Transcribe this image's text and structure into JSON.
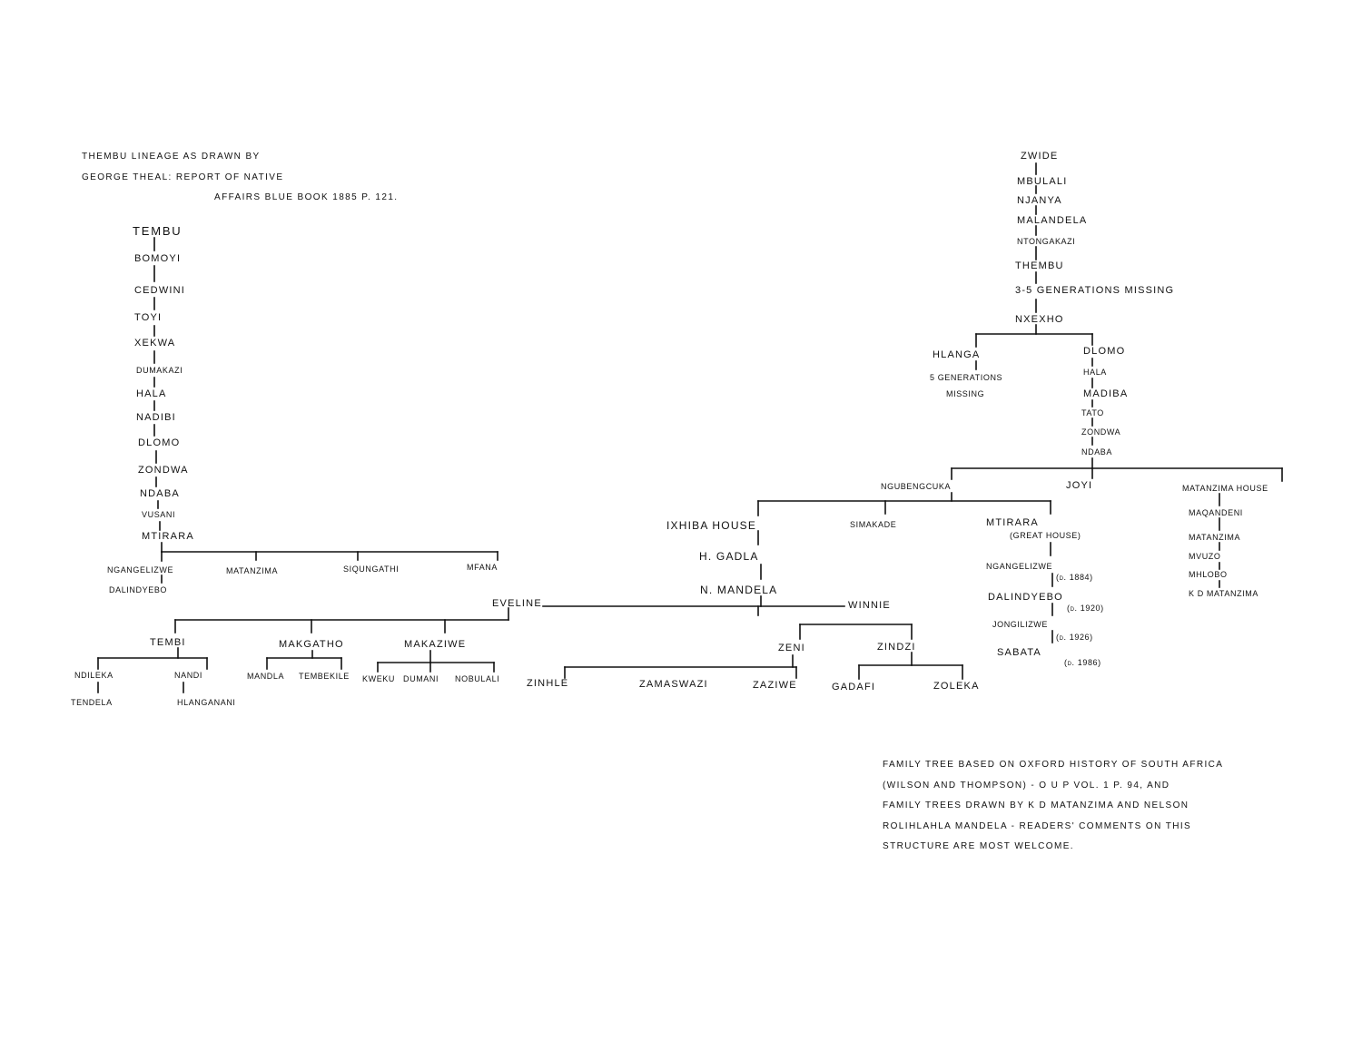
{
  "header_note": [
    "THEMBU  LINEAGE   AS   DRAWN   BY",
    "GEORGE   THEAL:  REPORT   OF   NATIVE",
    "AFFAIRS  BLUE  BOOK  1885  P. 121."
  ],
  "footer_note": [
    "FAMILY  TREE  BASED  ON  OXFORD  HISTORY  OF  SOUTH  AFRICA",
    "(WILSON  AND  THOMPSON) - O U P  VOL. 1  P. 94,  AND",
    "FAMILY  TREES  DRAWN  BY  K D  MATANZIMA  AND  NELSON",
    "ROLIHLAHLA  MANDELA - READERS'  COMMENTS  ON  THIS",
    "STRUCTURE  ARE  MOST  WELCOME."
  ],
  "theal": {
    "tembu": "TEMBU",
    "bomoyi": "BOMOYI",
    "cedwini": "CEDWINI",
    "toyi": "TOYI",
    "xekwa": "XEKWA",
    "dumakazi": "DUMAKAZI",
    "hala": "HALA",
    "nadibi": "NADIBI",
    "dlomo": "DLOMO",
    "zondwa": "ZONDWA",
    "ndaba": "NDABA",
    "vusani": "VUSANI",
    "mtirara": "MTIRARA",
    "ngangelizwe": "NGANGELIZWE",
    "matanzima": "MATANZIMA",
    "siqungathi": "SIQUNGATHI",
    "mfana": "MFANA",
    "dalindyebo": "DALINDYEBO"
  },
  "main": {
    "zwide": "ZWIDE",
    "mbulali": "MBULALI",
    "njanya": "NJANYA",
    "malandela": "MALANDELA",
    "ntongakazi": "NTONGAKAZI",
    "thembu": "THEMBU",
    "missing_3_5": "3-5  GENERATIONS  MISSING",
    "nxexho": "NXEXHO",
    "hlanga": "HLANGA",
    "missing_5a": "5  GENERATIONS",
    "missing_5b": "MISSING",
    "dlomo": "DLOMO",
    "hala": "HALA",
    "madiba": "MADIBA",
    "tato": "TATO",
    "zondwa": "ZONDWA",
    "ndaba": "NDABA",
    "ngubengcuka": "NGUBENGCUKA",
    "joyi": "JOYI",
    "matanzima_house": "MATANZIMA  HOUSE",
    "ixhiba_house": "IXHIBA  HOUSE",
    "simakade": "SIMAKADE",
    "mtirara": "MTIRARA",
    "great_house": "(GREAT  HOUSE)",
    "h_gadla": "H.  GADLA",
    "n_mandela": "N.  MANDELA",
    "ngangelizwe": "NGANGELIZWE",
    "d1884": "(d. 1884)",
    "dalindyebo": "DALINDYEBO",
    "d1920": "(d. 1920)",
    "jongilizwe": "JONGILIZWE",
    "d1926": "(d. 1926)",
    "sabata": "SABATA",
    "d1986": "(d. 1986)",
    "maqandeni": "MAQANDENI",
    "matanzima": "MATANZIMA",
    "mvuzo": "MVUZO",
    "mhlobo": "MHLOBO",
    "kd_matanzima": "K D  MATANZIMA"
  },
  "family": {
    "eveline": "EVELINE",
    "winnie": "WINNIE",
    "tembi": "TEMBI",
    "makgatho": "MAKGATHO",
    "makaziwe": "MAKAZIWE",
    "ndileka": "NDILEKA",
    "nandi": "NANDI",
    "tendela": "TENDELA",
    "hlanganani": "HLANGANANI",
    "mandla": "MANDLA",
    "tembekile": "TEMBEKILE",
    "kweku": "KWEKU",
    "dumani": "DUMANI",
    "nobulali": "NOBULALI",
    "zeni": "ZENI",
    "zindzi": "ZINDZI",
    "zinhle": "ZINHLE",
    "zamaswazi": "ZAMASWAZI",
    "zaziwe": "ZAZIWE",
    "gadafi": "GADAFI",
    "zoleka": "ZOLEKA"
  }
}
